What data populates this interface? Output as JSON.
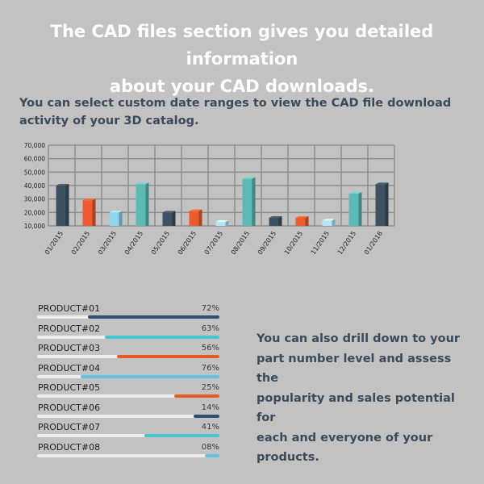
{
  "headline": {
    "line1": "The CAD files section gives you detailed information",
    "line2": "about your CAD downloads."
  },
  "subhead": {
    "line1": "You can select custom date ranges to view the CAD file download",
    "line2": "activity of your 3D catalog."
  },
  "chart_data": {
    "type": "bar",
    "categories": [
      "01/2015",
      "02/2015",
      "03/2015",
      "04/2015",
      "05/2015",
      "06/2015",
      "07/2015",
      "08/2015",
      "09/2015",
      "10/2015",
      "11/2015",
      "12/2015",
      "01/2016"
    ],
    "values": [
      40000,
      29000,
      20000,
      41000,
      20000,
      21000,
      13000,
      45000,
      16000,
      16000,
      14000,
      34000,
      41000
    ],
    "ylim": [
      10000,
      70000
    ],
    "yticks": [
      "10,000",
      "20,000",
      "30,000",
      "40,000",
      "50,000",
      "60,000",
      "70,000"
    ],
    "grid": true,
    "bar_colors": [
      "#3f5262",
      "#ee5b2f",
      "#8fd3ef",
      "#5bb9b6",
      "#3f5262",
      "#ee5b2f",
      "#b5e5f5",
      "#5bb9b6",
      "#3f5262",
      "#ee5b2f",
      "#b5e5f5",
      "#5bb9b6",
      "#3f5262"
    ]
  },
  "products": [
    {
      "name": "PRODUCT#01",
      "percent": "72%",
      "value": 72,
      "color": "#2f4e73"
    },
    {
      "name": "PRODUCT#02",
      "percent": "63%",
      "value": 63,
      "color": "#45c5cf"
    },
    {
      "name": "PRODUCT#03",
      "percent": "56%",
      "value": 56,
      "color": "#e75a25"
    },
    {
      "name": "PRODUCT#04",
      "percent": "76%",
      "value": 76,
      "color": "#62c3e3"
    },
    {
      "name": "PRODUCT#05",
      "percent": "25%",
      "value": 25,
      "color": "#e75a25"
    },
    {
      "name": "PRODUCT#06",
      "percent": "14%",
      "value": 14,
      "color": "#2f4e73"
    },
    {
      "name": "PRODUCT#07",
      "percent": "41%",
      "value": 41,
      "color": "#45c5cf"
    },
    {
      "name": "PRODUCT#08",
      "percent": "08%",
      "value": 8,
      "color": "#62c3e3"
    }
  ],
  "side_note": {
    "line1": "You can also drill down to your",
    "line2": "part number level and assess the",
    "line3": "popularity and sales potential for",
    "line4": "each and everyone of your",
    "line5": "products."
  }
}
